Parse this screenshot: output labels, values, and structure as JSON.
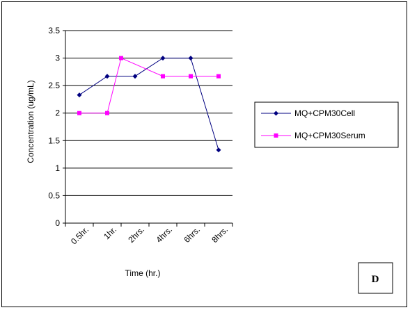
{
  "chart_data": {
    "type": "line",
    "categories": [
      "0.5hr.",
      "1hr.",
      "2hrs.",
      "4hrs.",
      "6hrs.",
      "8hrs."
    ],
    "xlabel": "Time (hr.)",
    "ylabel": "Concentration (ug/mL)",
    "ylim": [
      0,
      3.5
    ],
    "yticks": [
      "0",
      "0.5",
      "1",
      "1.5",
      "2",
      "2.5",
      "3",
      "3.5"
    ],
    "grid": "horizontal",
    "legend_position": "right",
    "panel_label": "D",
    "series": [
      {
        "name": "MQ+CPM30Cell",
        "color": "#000080",
        "marker": "diamond",
        "x": [
          0.5,
          1.5,
          2.5,
          3.5,
          4.5,
          5.5
        ],
        "values": [
          2.33,
          2.67,
          2.67,
          3.0,
          3.0,
          1.33
        ]
      },
      {
        "name": "MQ+CPM30Serum",
        "color": "#ff00ff",
        "marker": "square",
        "x": [
          0.5,
          1.5,
          2.0,
          3.5,
          4.5,
          5.5
        ],
        "values": [
          2.0,
          2.0,
          3.0,
          2.67,
          2.67,
          2.67
        ]
      }
    ]
  }
}
